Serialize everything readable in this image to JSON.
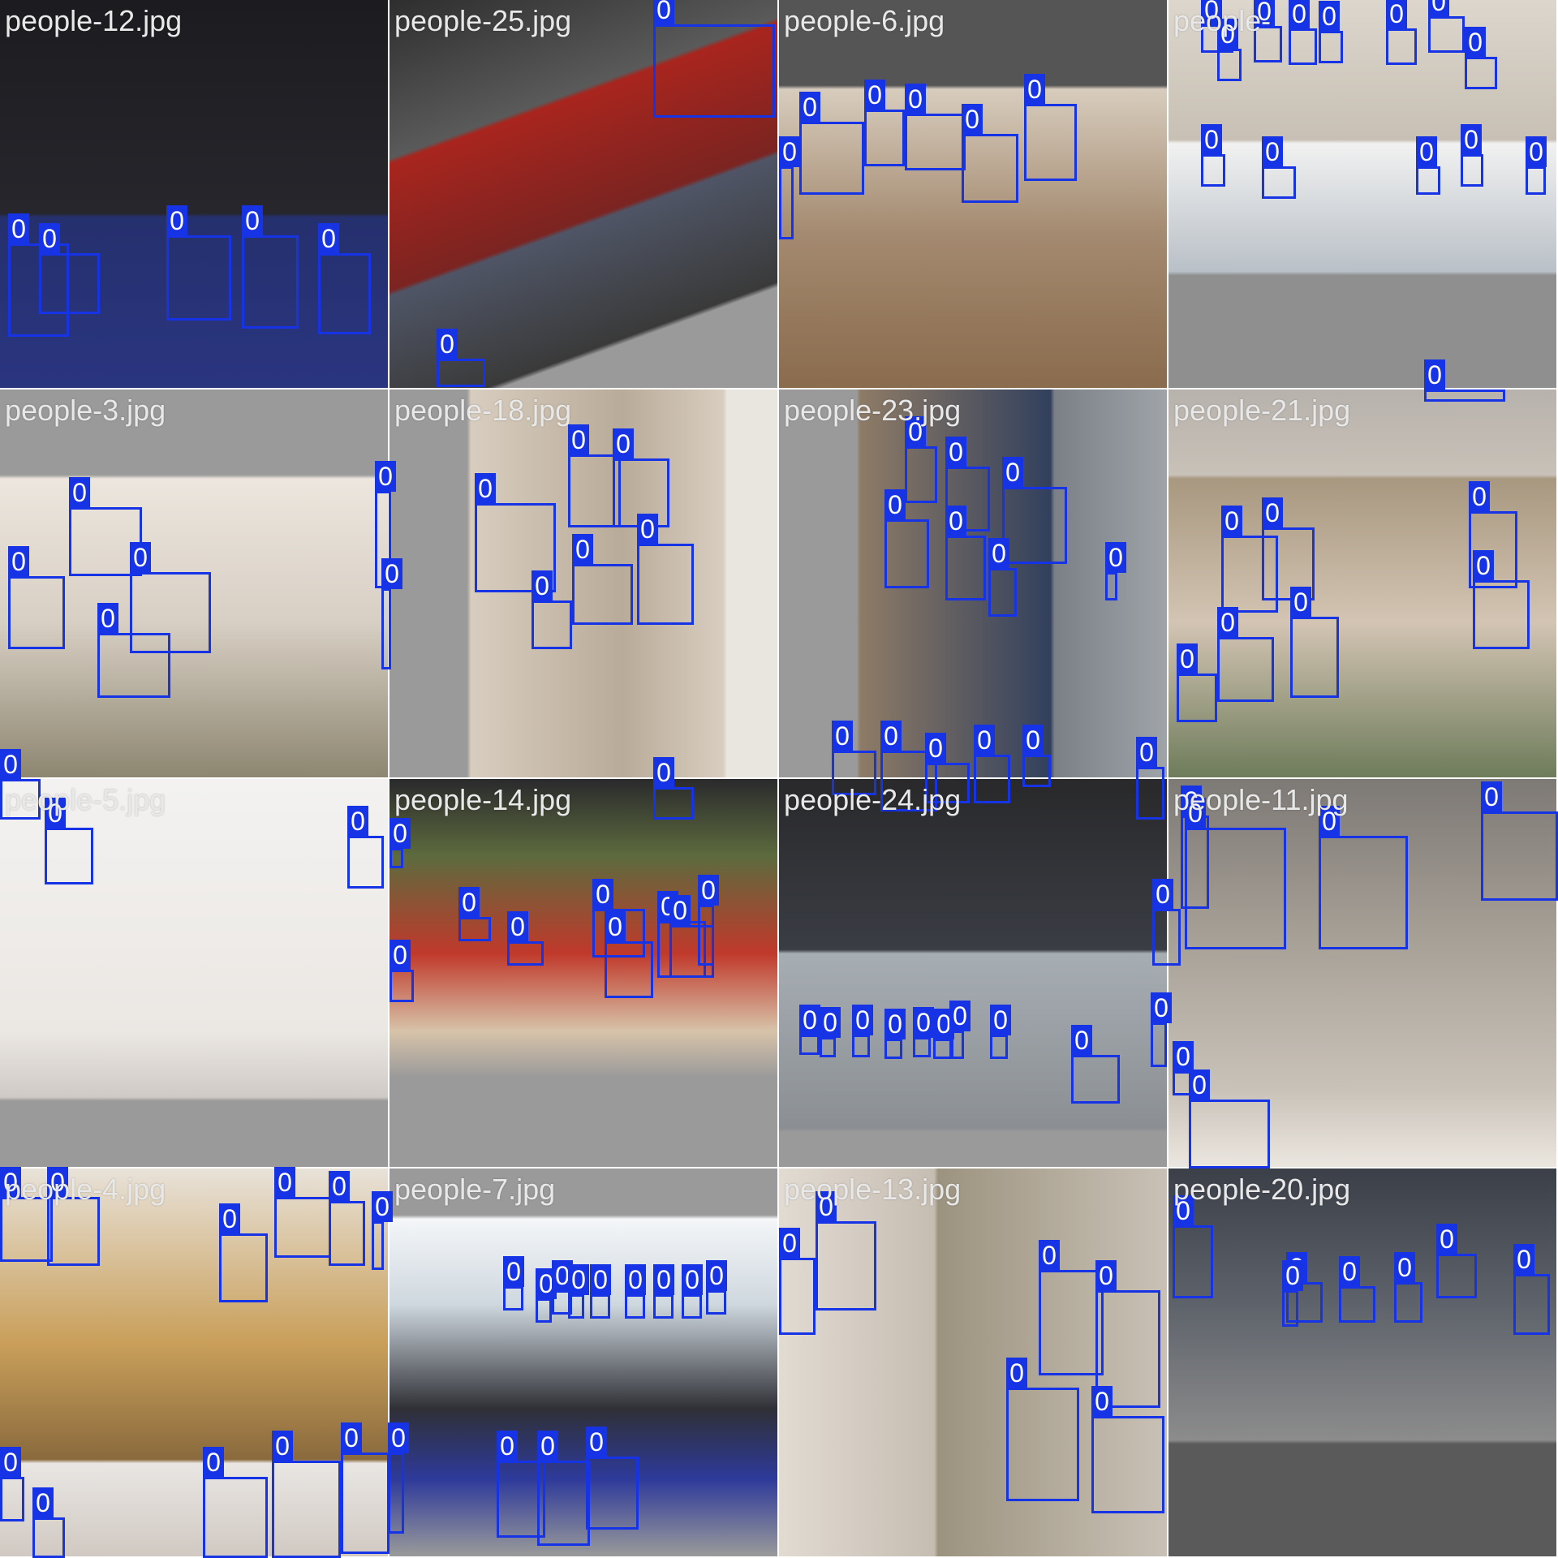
{
  "class_label": "0",
  "box_color": "#1733e6",
  "tiles": [
    {
      "name": "people-12.jpg",
      "bg": [
        "#1b1b1f",
        "#2a2a55",
        "#7a5a4a"
      ]
    },
    {
      "name": "people-25.jpg",
      "bg": [
        "#3b3b3b",
        "#b0201c",
        "#6e7386"
      ]
    },
    {
      "name": "people-6.jpg",
      "bg": [
        "#565656",
        "#c9bba7",
        "#8a6f55"
      ]
    },
    {
      "name": "people-",
      "bg": [
        "#8f8f8f",
        "#d9d2c8",
        "#bfc7cf"
      ]
    },
    {
      "name": "people-3.jpg",
      "bg": [
        "#9a9a9a",
        "#e9e3dc",
        "#8c8670"
      ]
    },
    {
      "name": "people-18.jpg",
      "bg": [
        "#9a9a9a",
        "#d6cbbd",
        "#3b4252"
      ]
    },
    {
      "name": "people-23.jpg",
      "bg": [
        "#9a9a9a",
        "#8c7a66",
        "#2f3e5c"
      ]
    },
    {
      "name": "people-21.jpg",
      "bg": [
        "#a6a6a6",
        "#d4c6b5",
        "#c9c2bb"
      ]
    },
    {
      "name": "people-5.jpg",
      "bg": [
        "#f1f0ef",
        "#ece9e6",
        "#9a9a9a"
      ]
    },
    {
      "name": "people-14.jpg",
      "bg": [
        "#9a9a9a",
        "#c23a2c",
        "#d8c6b0"
      ]
    },
    {
      "name": "people-24.jpg",
      "bg": [
        "#2c2c2e",
        "#a8aeb5",
        "#9a9a9a"
      ]
    },
    {
      "name": "people-11.jpg",
      "bg": [
        "#8f8b86",
        "#b9b1a8",
        "#d2cdc6"
      ]
    },
    {
      "name": "people-4.jpg",
      "bg": [
        "#e6e1d8",
        "#c29a55",
        "#8b6a3d"
      ]
    },
    {
      "name": "people-7.jpg",
      "bg": [
        "#9a9a9a",
        "#dfe6ec",
        "#2a2a30"
      ]
    },
    {
      "name": "people-13.jpg",
      "bg": [
        "#ddd5ca",
        "#9d9486",
        "#c7bfb5"
      ]
    },
    {
      "name": "people-20.jpg",
      "bg": [
        "#5a5a5a",
        "#3a3f48",
        "#8a8a8a"
      ]
    }
  ]
}
